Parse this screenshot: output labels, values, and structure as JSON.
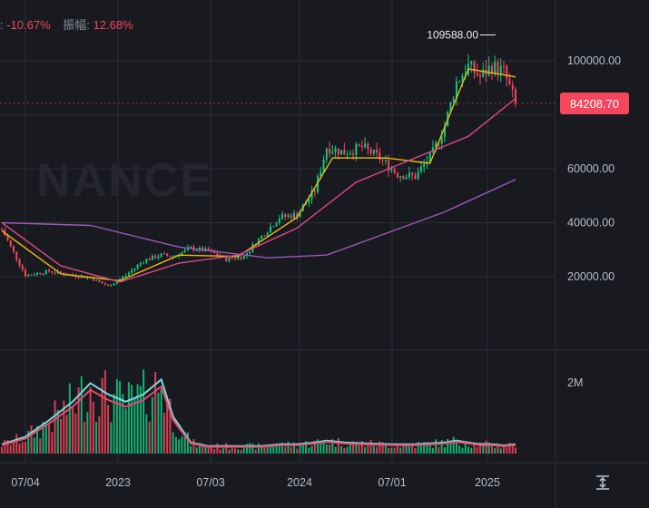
{
  "header": {
    "change_label": ":",
    "change_value": "-10.67%",
    "amplitude_label": "振幅:",
    "amplitude_value": "12.68%"
  },
  "watermark": "NANCE",
  "price_axis": {
    "ticks": [
      {
        "value": 100000,
        "label": "100000.00"
      },
      {
        "value": 80000,
        "label": ""
      },
      {
        "value": 60000,
        "label": "60000.00"
      },
      {
        "value": 40000,
        "label": "40000.00"
      },
      {
        "value": 20000,
        "label": "20000.00"
      }
    ],
    "current_price_label": "84208.70",
    "current_price": 84208.7,
    "high_label": "109588.00",
    "high": 109588
  },
  "volume_axis": {
    "ticks": [
      {
        "value": 2,
        "label": "2M"
      }
    ],
    "unit": "M"
  },
  "time_axis": {
    "labels": [
      "07/04",
      "2023",
      "07/03",
      "2024",
      "07/01",
      "2025"
    ]
  },
  "colors": {
    "up": "#0ecb81",
    "down": "#f6465d",
    "ma_short": "#f0b90b",
    "ma_mid": "#e0468a",
    "ma_long": "#9b59b6",
    "vol_ma_fast": "#7ad8d8",
    "vol_ma_slow": "#e64b6e",
    "background": "#181a20",
    "grid": "#2b2f36"
  },
  "chart_data": {
    "type": "candlestick",
    "interval": "weekly",
    "price_range": [
      0,
      118000
    ],
    "volume_range": [
      0,
      2.7
    ],
    "anchor_points": [
      {
        "t": 0,
        "price": 37500,
        "volume": 0.25
      },
      {
        "t": 8,
        "price": 20500,
        "volume": 0.45
      },
      {
        "t": 16,
        "price": 22000,
        "volume": 0.9
      },
      {
        "t": 24,
        "price": 20500,
        "volume": 1.4
      },
      {
        "t": 30,
        "price": 19500,
        "volume": 1.9
      },
      {
        "t": 36,
        "price": 16500,
        "volume": 1.6
      },
      {
        "t": 42,
        "price": 20500,
        "volume": 1.4
      },
      {
        "t": 48,
        "price": 26000,
        "volume": 1.6
      },
      {
        "t": 54,
        "price": 28000,
        "volume": 2.0
      },
      {
        "t": 58,
        "price": 27500,
        "volume": 1.0
      },
      {
        "t": 64,
        "price": 30500,
        "volume": 0.3
      },
      {
        "t": 70,
        "price": 29500,
        "volume": 0.2
      },
      {
        "t": 76,
        "price": 26500,
        "volume": 0.2
      },
      {
        "t": 82,
        "price": 27500,
        "volume": 0.2
      },
      {
        "t": 88,
        "price": 35000,
        "volume": 0.2
      },
      {
        "t": 94,
        "price": 42000,
        "volume": 0.25
      },
      {
        "t": 100,
        "price": 43000,
        "volume": 0.25
      },
      {
        "t": 106,
        "price": 52000,
        "volume": 0.3
      },
      {
        "t": 110,
        "price": 68000,
        "volume": 0.35
      },
      {
        "t": 116,
        "price": 66000,
        "volume": 0.3
      },
      {
        "t": 122,
        "price": 68000,
        "volume": 0.28
      },
      {
        "t": 128,
        "price": 64000,
        "volume": 0.26
      },
      {
        "t": 134,
        "price": 58000,
        "volume": 0.25
      },
      {
        "t": 140,
        "price": 57000,
        "volume": 0.25
      },
      {
        "t": 146,
        "price": 66000,
        "volume": 0.28
      },
      {
        "t": 150,
        "price": 76000,
        "volume": 0.3
      },
      {
        "t": 154,
        "price": 92000,
        "volume": 0.35
      },
      {
        "t": 158,
        "price": 98000,
        "volume": 0.3
      },
      {
        "t": 162,
        "price": 94000,
        "volume": 0.25
      },
      {
        "t": 166,
        "price": 98000,
        "volume": 0.25
      },
      {
        "t": 170,
        "price": 96000,
        "volume": 0.22
      },
      {
        "t": 174,
        "price": 84208.7,
        "volume": 0.25
      }
    ],
    "moving_averages": [
      {
        "period": "short",
        "points": [
          {
            "t": 0,
            "price": 37000
          },
          {
            "t": 20,
            "price": 21000
          },
          {
            "t": 40,
            "price": 18500
          },
          {
            "t": 60,
            "price": 28000
          },
          {
            "t": 80,
            "price": 27500
          },
          {
            "t": 100,
            "price": 42000
          },
          {
            "t": 112,
            "price": 64000
          },
          {
            "t": 130,
            "price": 64000
          },
          {
            "t": 145,
            "price": 62000
          },
          {
            "t": 158,
            "price": 97000
          },
          {
            "t": 174,
            "price": 94000
          }
        ]
      },
      {
        "period": "mid",
        "points": [
          {
            "t": 0,
            "price": 40000
          },
          {
            "t": 20,
            "price": 24000
          },
          {
            "t": 40,
            "price": 18000
          },
          {
            "t": 60,
            "price": 25000
          },
          {
            "t": 80,
            "price": 28000
          },
          {
            "t": 100,
            "price": 38000
          },
          {
            "t": 120,
            "price": 55000
          },
          {
            "t": 140,
            "price": 64000
          },
          {
            "t": 158,
            "price": 72000
          },
          {
            "t": 174,
            "price": 86000
          }
        ]
      },
      {
        "period": "long",
        "points": [
          {
            "t": 0,
            "price": 40000
          },
          {
            "t": 30,
            "price": 39000
          },
          {
            "t": 60,
            "price": 31000
          },
          {
            "t": 90,
            "price": 27000
          },
          {
            "t": 110,
            "price": 28000
          },
          {
            "t": 130,
            "price": 36000
          },
          {
            "t": 150,
            "price": 44000
          },
          {
            "t": 174,
            "price": 56000
          }
        ]
      }
    ]
  }
}
